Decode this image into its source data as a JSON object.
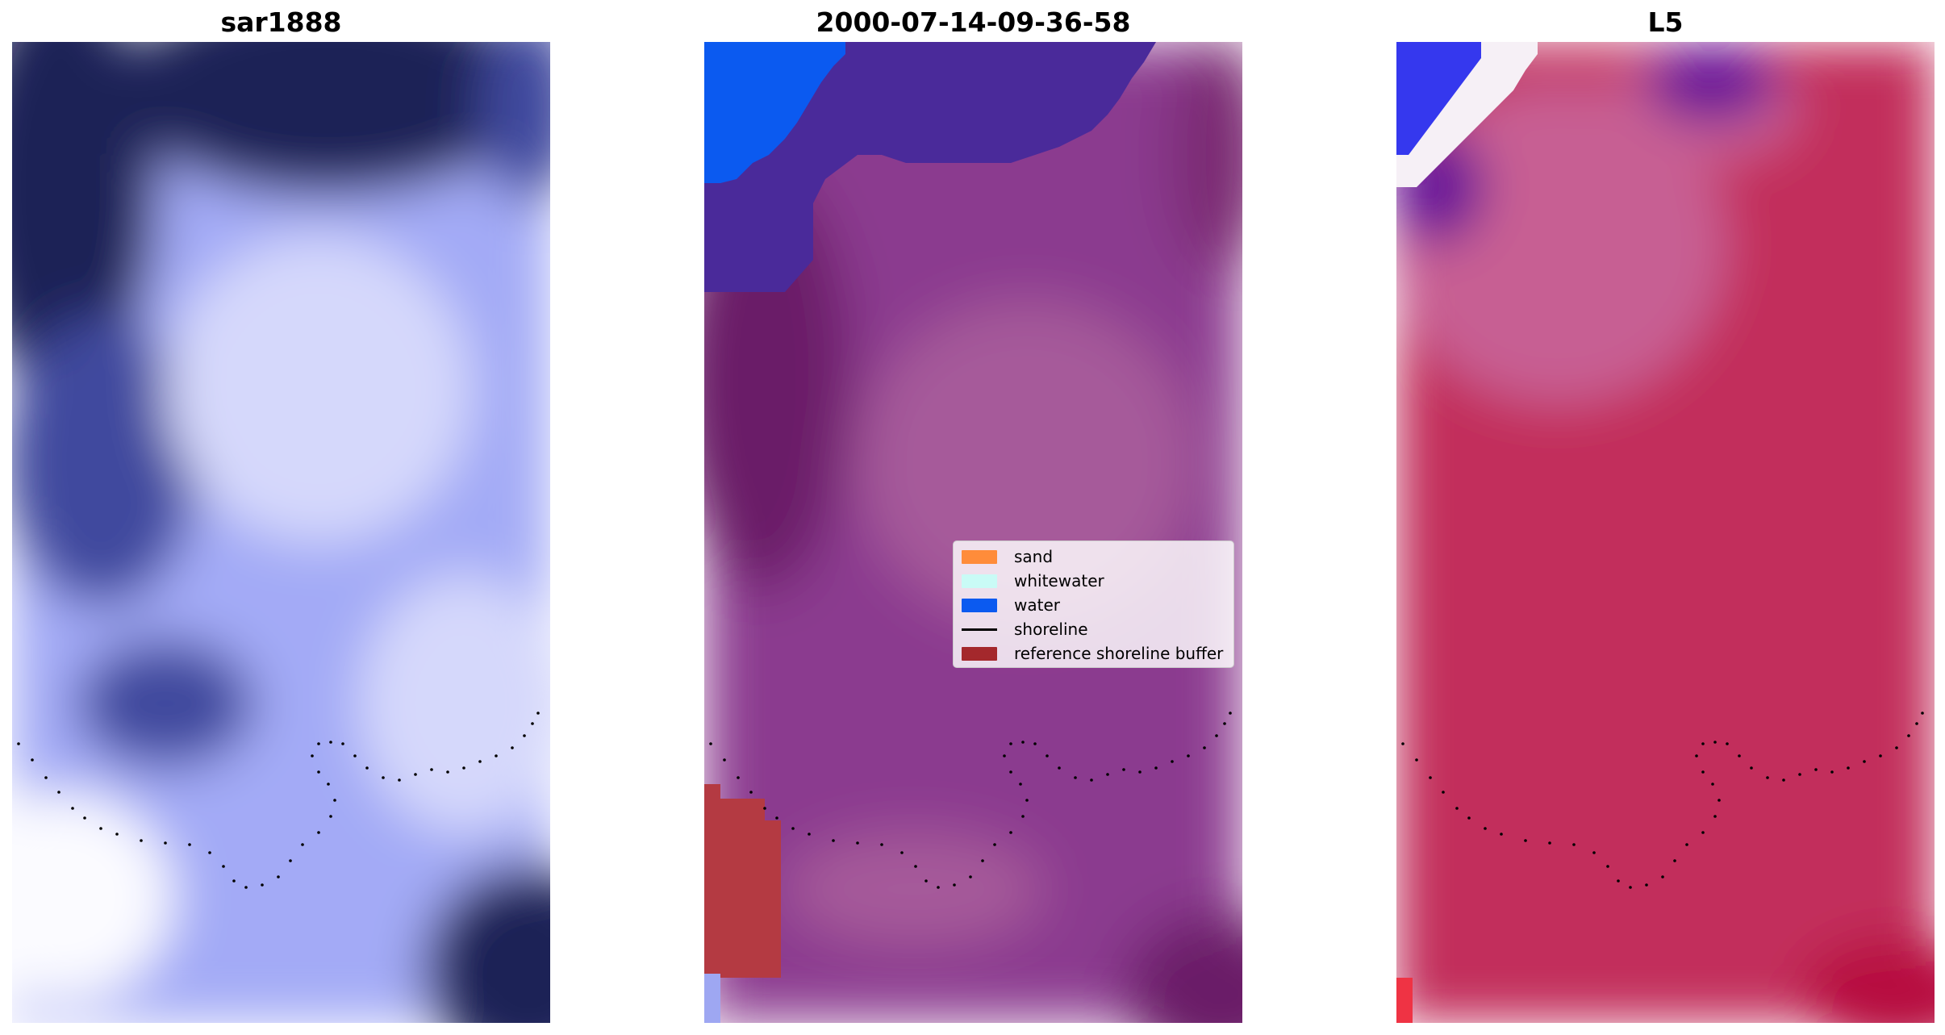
{
  "panels": [
    {
      "title": "sar1888"
    },
    {
      "title": "2000-07-14-09-36-58"
    },
    {
      "title": "L5"
    }
  ],
  "legend": {
    "items": [
      {
        "label": "sand",
        "color": "#ff8c3a",
        "kind": "patch"
      },
      {
        "label": "whitewater",
        "color": "#c9fbf6",
        "kind": "patch"
      },
      {
        "label": "water",
        "color": "#0b5af0",
        "kind": "patch"
      },
      {
        "label": "shoreline",
        "color": "#000000",
        "kind": "line"
      },
      {
        "label": "reference shoreline buffer",
        "color": "#a4282c",
        "kind": "patch"
      }
    ]
  },
  "colors": {
    "sar_dark": "#1a2356",
    "sar_mid": "#a3aaf6",
    "sar_light": "#e4e7fb",
    "classified_base": "#8b3a8f",
    "classified_dark": "#5f1550",
    "classified_water": "#0b5af0",
    "classified_overlay": "#4a2a9a",
    "classified_buffer": "#b43a42",
    "index_base": "#c22e5b",
    "index_light": "#c75e93",
    "index_blue": "#2a2aee",
    "index_purple": "#6a1598"
  }
}
